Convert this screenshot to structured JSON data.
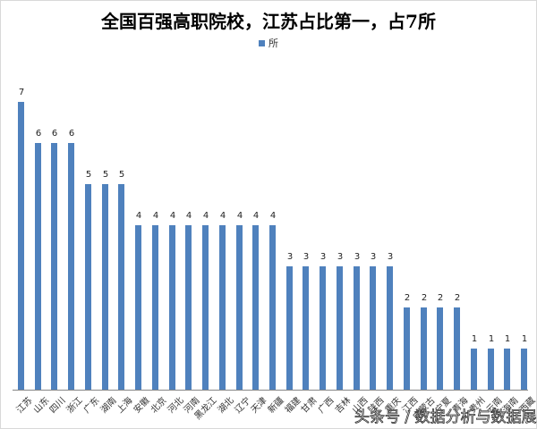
{
  "chart_data": {
    "type": "bar",
    "title": "全国百强高职院校，江苏占比第一，占7所",
    "xlabel": "",
    "ylabel": "",
    "legend": {
      "entries": [
        "所"
      ],
      "position": "top"
    },
    "grid": false,
    "ylim": [
      0,
      8
    ],
    "data_labels": true,
    "color": "#4f81bd",
    "categories": [
      "江苏",
      "山东",
      "四川",
      "浙江",
      "广东",
      "湖南",
      "上海",
      "安徽",
      "北京",
      "河北",
      "河南",
      "黑龙江",
      "湖北",
      "辽宁",
      "天津",
      "新疆",
      "福建",
      "甘肃",
      "广西",
      "吉林",
      "山西",
      "陕西",
      "重庆",
      "江西",
      "内蒙古",
      "宁夏",
      "青海",
      "贵州",
      "云南",
      "海南",
      "西藏"
    ],
    "series": [
      {
        "name": "所",
        "values": [
          7,
          6,
          6,
          6,
          5,
          5,
          5,
          4,
          4,
          4,
          4,
          4,
          4,
          4,
          4,
          4,
          3,
          3,
          3,
          3,
          3,
          3,
          3,
          2,
          2,
          2,
          2,
          1,
          1,
          1,
          1
        ]
      }
    ]
  },
  "watermark": "头条号 / 数据分析与数据展示"
}
